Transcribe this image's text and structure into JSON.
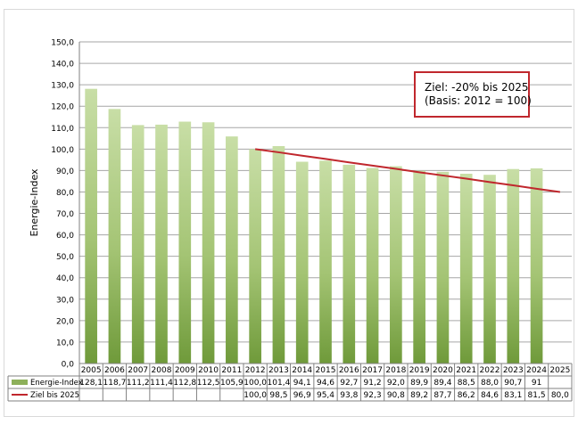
{
  "chart_data": {
    "type": "bar",
    "ylabel": "Energie-Index",
    "ylim": [
      0,
      150
    ],
    "ytick_step": 10,
    "ytick_labels": [
      "0,0",
      "10,0",
      "20,0",
      "30,0",
      "40,0",
      "50,0",
      "60,0",
      "70,0",
      "80,0",
      "90,0",
      "100,0",
      "110,0",
      "120,0",
      "130,0",
      "140,0",
      "150,0"
    ],
    "categories": [
      "2005",
      "2006",
      "2007",
      "2008",
      "2009",
      "2010",
      "2011",
      "2012",
      "2013",
      "2014",
      "2015",
      "2016",
      "2017",
      "2018",
      "2019",
      "2020",
      "2021",
      "2022",
      "2023",
      "2024",
      "2025"
    ],
    "grid": true,
    "series": [
      {
        "name": "Energie-Index",
        "type": "bar",
        "color": "#8db05a",
        "values": [
          128.1,
          118.7,
          111.2,
          111.4,
          112.8,
          112.5,
          105.9,
          100.0,
          101.4,
          94.1,
          94.6,
          92.7,
          91.2,
          92.0,
          89.9,
          89.4,
          88.5,
          88.0,
          90.7,
          91,
          null
        ],
        "labels": [
          "128,1",
          "118,7",
          "111,2",
          "111,4",
          "112,8",
          "112,5",
          "105,9",
          "100,0",
          "101,4",
          "94,1",
          "94,6",
          "92,7",
          "91,2",
          "92,0",
          "89,9",
          "89,4",
          "88,5",
          "88,0",
          "90,7",
          "91",
          ""
        ]
      },
      {
        "name": "Ziel bis 2025",
        "type": "line",
        "color": "#c0272d",
        "values": [
          null,
          null,
          null,
          null,
          null,
          null,
          null,
          100.0,
          98.5,
          96.9,
          95.4,
          93.8,
          92.3,
          90.8,
          89.2,
          87.7,
          86.2,
          84.6,
          83.1,
          81.5,
          80.0
        ],
        "labels": [
          "",
          "",
          "",
          "",
          "",
          "",
          "",
          "100,0",
          "98,5",
          "96,9",
          "95,4",
          "93,8",
          "92,3",
          "90,8",
          "89,2",
          "87,7",
          "86,2",
          "84,6",
          "83,1",
          "81,5",
          "80,0"
        ]
      }
    ],
    "annotation": [
      "Ziel: -20% bis 2025",
      "(Basis: 2012 = 100)"
    ]
  }
}
